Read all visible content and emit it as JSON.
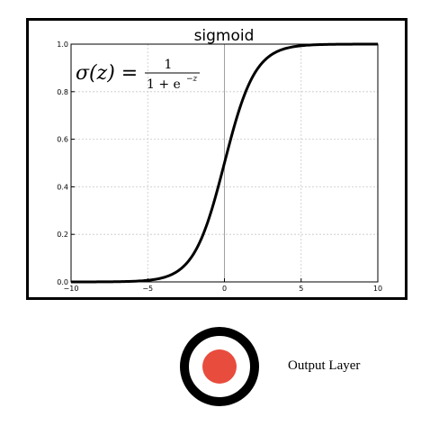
{
  "chart_data": {
    "type": "line",
    "title": "sigmoid",
    "formula": {
      "lhs": "σ(z) =",
      "numerator": "1",
      "denominator": "1 + e",
      "exponent": "−z"
    },
    "xlim": [
      -10,
      10
    ],
    "ylim": [
      0.0,
      1.0
    ],
    "xticks": [
      -10,
      -5,
      0,
      5,
      10
    ],
    "xtick_labels": [
      "−10",
      "−5",
      "0",
      "5",
      "10"
    ],
    "yticks": [
      0.0,
      0.2,
      0.4,
      0.6,
      0.8,
      1.0
    ],
    "ytick_labels": [
      "0.0",
      "0.2",
      "0.4",
      "0.6",
      "0.8",
      "1.0"
    ],
    "grid": true,
    "series": [
      {
        "function": "1/(1+exp(-z))",
        "x": [
          -10,
          -8,
          -6,
          -5,
          -4,
          -3,
          -2,
          -1,
          0,
          1,
          2,
          3,
          4,
          5,
          6,
          8,
          10
        ],
        "y": [
          0.0,
          0.0003,
          0.0025,
          0.0067,
          0.018,
          0.047,
          0.119,
          0.269,
          0.5,
          0.731,
          0.881,
          0.953,
          0.982,
          0.9933,
          0.9975,
          0.9997,
          1.0
        ],
        "color": "#000000"
      }
    ]
  },
  "output_node": {
    "label": "Output Layer",
    "ring_color": "#000000",
    "fill_color": "#e84c3d"
  }
}
